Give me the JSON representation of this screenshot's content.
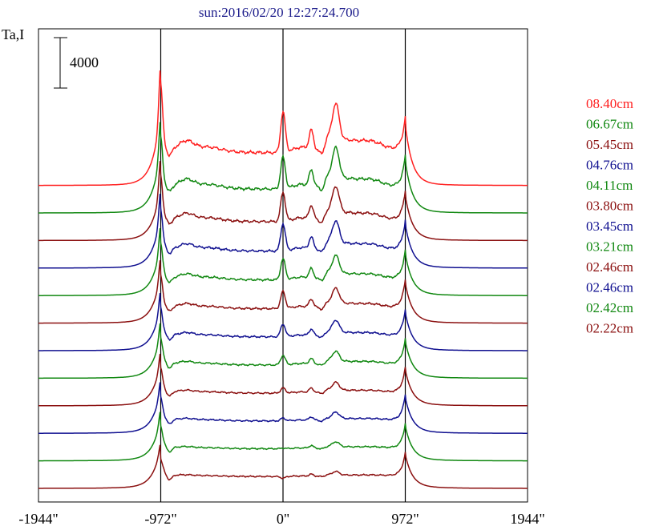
{
  "chart_data": {
    "type": "line",
    "title": "sun:2016/02/20 12:27:24.700",
    "ylabel": "Ta,I",
    "scale_bar": {
      "label": "4000",
      "value": 4000
    },
    "xlim": [
      -1944,
      1944
    ],
    "x_ticks": [
      {
        "value": -1944,
        "label": "-1944\""
      },
      {
        "value": -972,
        "label": "-972\""
      },
      {
        "value": 0,
        "label": "0\""
      },
      {
        "value": 972,
        "label": "972\""
      },
      {
        "value": 1944,
        "label": "1944\""
      }
    ],
    "vertical_lines": [
      -972,
      0,
      972
    ],
    "colors": {
      "red": "#ff2020",
      "green": "#118811",
      "darkred": "#8b1010",
      "navy": "#101090",
      "title": "#1a1a8a"
    },
    "series": [
      {
        "name": "08.40cm",
        "color": "#ff2020",
        "peak": 6600,
        "peak0": 5800,
        "limb": 5800,
        "mid": 2600,
        "active": 1.0
      },
      {
        "name": "06.67cm",
        "color": "#118811",
        "peak": 4700,
        "peak0": 4400,
        "limb": 4900,
        "mid": 1900,
        "active": 0.85
      },
      {
        "name": "05.45cm",
        "color": "#8b1010",
        "peak": 4000,
        "peak0": 3800,
        "limb": 4200,
        "mid": 1500,
        "active": 0.72
      },
      {
        "name": "04.76cm",
        "color": "#101090",
        "peak": 3500,
        "peak0": 3500,
        "limb": 4100,
        "mid": 1350,
        "active": 0.62
      },
      {
        "name": "04.11cm",
        "color": "#118811",
        "peak": 3000,
        "peak0": 2900,
        "limb": 3900,
        "mid": 1250,
        "active": 0.5
      },
      {
        "name": "03.80cm",
        "color": "#8b1010",
        "peak": 2700,
        "peak0": 2500,
        "limb": 3700,
        "mid": 1150,
        "active": 0.42
      },
      {
        "name": "03.45cm",
        "color": "#101090",
        "peak": 2400,
        "peak0": 2100,
        "limb": 3500,
        "mid": 1100,
        "active": 0.34
      },
      {
        "name": "03.21cm",
        "color": "#118811",
        "peak": 2200,
        "peak0": 1800,
        "limb": 3400,
        "mid": 1050,
        "active": 0.28
      },
      {
        "name": "02.46cm",
        "color": "#8b1010",
        "peak": 2000,
        "peak0": 1400,
        "limb": 3300,
        "mid": 1000,
        "active": 0.22
      },
      {
        "name": "02.46cm",
        "color": "#101090",
        "peak": 1900,
        "peak0": 1200,
        "limb": 3300,
        "mid": 980,
        "active": 0.18
      },
      {
        "name": "02.42cm",
        "color": "#118811",
        "peak": 1800,
        "peak0": 1000,
        "limb": 3200,
        "mid": 960,
        "active": 0.14
      },
      {
        "name": "02.22cm",
        "color": "#8b1010",
        "peak": 1400,
        "peak0": 800,
        "limb": 3100,
        "mid": 940,
        "active": 0.1
      }
    ]
  }
}
